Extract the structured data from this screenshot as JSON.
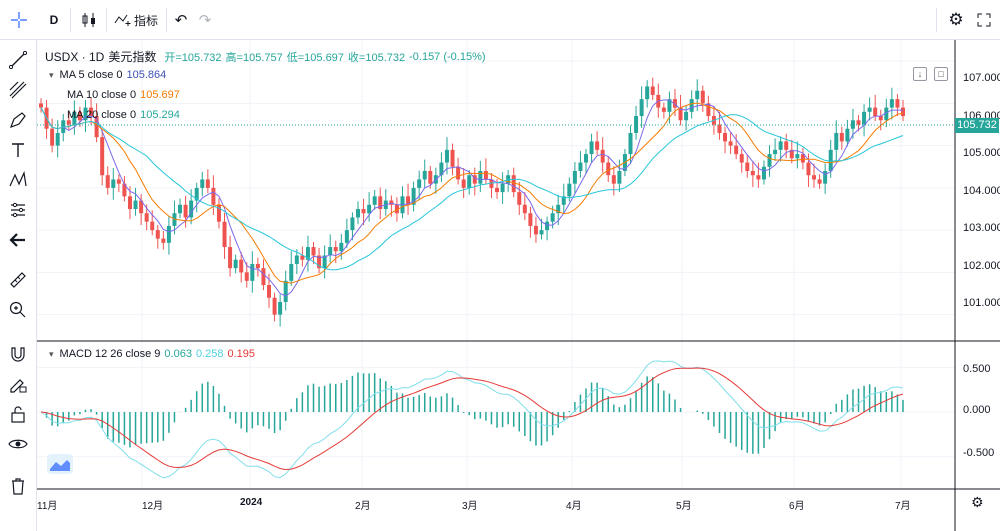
{
  "toolbar": {
    "interval": "D",
    "indicators_label": "指标",
    "undo_glyph": "↶",
    "redo_glyph": "↷",
    "settings_glyph": "⚙",
    "fullscreen_glyph": "⛶"
  },
  "leftbar": {
    "items": [
      "crosshair-icon",
      "trend-line-icon",
      "fib-icon",
      "brush-icon",
      "text-icon",
      "pattern-icon",
      "prediction-icon",
      "back-arrow-icon",
      "ruler-icon",
      "zoom-icon",
      "magnet-icon",
      "lock-draw-icon",
      "lock-icon",
      "eye-icon",
      "trash-icon"
    ]
  },
  "legend": {
    "symbol": "USDX · 1D",
    "name": "美元指数",
    "open_label": "开=105.732",
    "high_label": "高=105.757",
    "low_label": "低=105.697",
    "close_label": "收=105.732",
    "change": "-0.157 (-0.15%)",
    "ma5_label": "MA 5 close 0",
    "ma5_value": "105.864",
    "ma10_label": "MA 10 close 0",
    "ma10_value": "105.697",
    "ma20_label": "MA 20 close 0",
    "ma20_value": "105.294",
    "macd_label": "MACD 12 26 close 9",
    "macd_hist": "0.063",
    "macd_line": "0.258",
    "macd_signal": "0.195"
  },
  "colors": {
    "up": "#26a69a",
    "down": "#ef5350",
    "ma5": "#7b68ee",
    "ma10": "#f57c00",
    "ma20": "#26c6da",
    "macd_line": "#80deea",
    "signal_line": "#e53935",
    "hist": "#26a69a"
  },
  "price_axis": [
    "107.000",
    "106.000",
    "105.000",
    "104.000",
    "103.000",
    "102.000",
    "101.000"
  ],
  "current_price": "105.732",
  "macd_axis": [
    "0.500",
    "0.000",
    "-0.500"
  ],
  "time_axis": [
    "11月",
    "12月",
    "2024",
    "2月",
    "3月",
    "4月",
    "5月",
    "6月",
    "7月"
  ],
  "chart_data": {
    "type": "candlestick",
    "y_range": [
      100.4,
      107.5
    ],
    "macd_range": [
      -0.85,
      0.75
    ],
    "closes": [
      105.9,
      105.4,
      105.0,
      105.3,
      105.6,
      105.5,
      105.8,
      105.6,
      105.9,
      105.7,
      105.2,
      104.3,
      104.0,
      104.2,
      104.1,
      103.8,
      103.5,
      103.7,
      103.4,
      103.2,
      103.0,
      102.8,
      102.7,
      103.1,
      103.4,
      103.6,
      103.3,
      103.7,
      104.0,
      104.2,
      104.0,
      103.6,
      103.2,
      102.6,
      102.1,
      102.3,
      102.0,
      101.8,
      102.2,
      102.1,
      101.7,
      101.4,
      101.0,
      101.3,
      101.8,
      102.2,
      102.4,
      102.3,
      102.6,
      102.4,
      102.1,
      102.4,
      102.6,
      102.5,
      102.7,
      103.0,
      103.3,
      103.5,
      103.4,
      103.6,
      103.8,
      103.5,
      103.7,
      103.6,
      103.4,
      103.8,
      103.6,
      104.0,
      104.2,
      104.4,
      104.1,
      104.3,
      104.6,
      104.9,
      104.5,
      104.2,
      104.0,
      104.3,
      104.1,
      104.4,
      104.2,
      104.0,
      103.9,
      104.1,
      104.3,
      103.9,
      103.6,
      103.4,
      103.1,
      102.9,
      103.0,
      103.2,
      103.4,
      103.6,
      103.8,
      104.1,
      104.4,
      104.6,
      104.8,
      105.1,
      104.9,
      104.6,
      104.3,
      104.1,
      104.4,
      104.8,
      105.3,
      105.7,
      106.1,
      106.4,
      106.2,
      105.9,
      105.8,
      106.1,
      105.9,
      105.6,
      105.8,
      106.1,
      106.3,
      106.0,
      105.7,
      105.5,
      105.3,
      105.1,
      105.0,
      104.8,
      104.6,
      104.4,
      104.3,
      104.2,
      104.5,
      104.8,
      104.9,
      105.1,
      104.9,
      104.7,
      104.8,
      104.6,
      104.3,
      104.2,
      104.1,
      104.4,
      104.9,
      105.3,
      105.1,
      105.4,
      105.6,
      105.5,
      105.8,
      105.9,
      105.7,
      105.6,
      105.9,
      106.1,
      105.9,
      105.7
    ],
    "series": [
      {
        "name": "MA 5 close 0",
        "value": "105.864"
      },
      {
        "name": "MA 10 close 0",
        "value": "105.697"
      },
      {
        "name": "MA 20 close 0",
        "value": "105.294"
      }
    ]
  }
}
